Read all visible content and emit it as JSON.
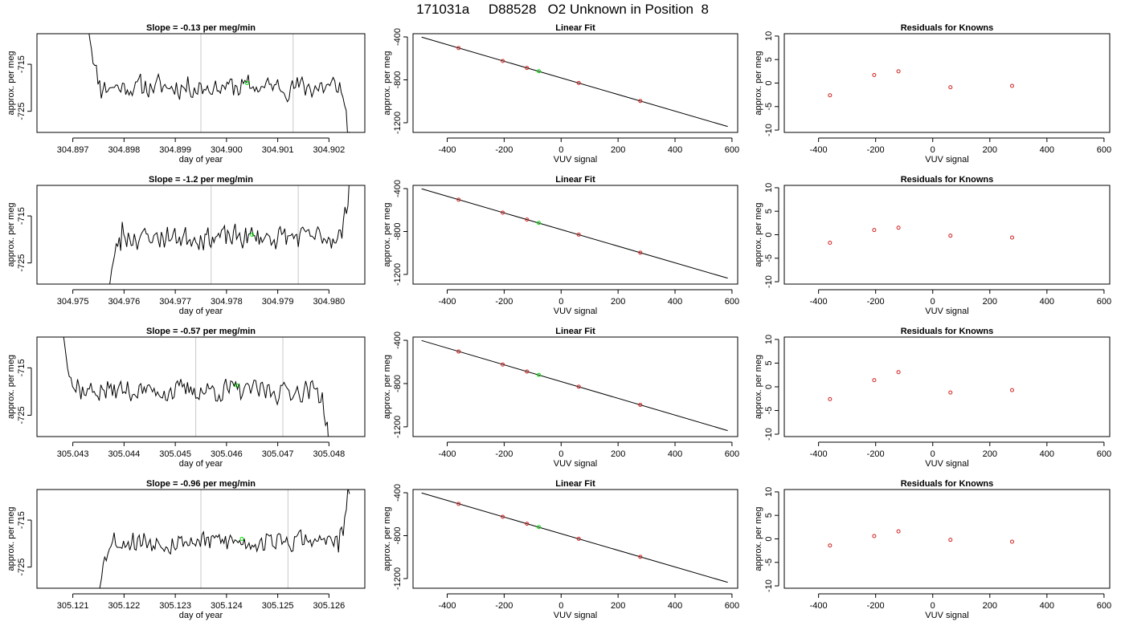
{
  "page_title": "171031a     D88528   O2 Unknown in Position  8",
  "chart_data": [
    {
      "type": "line",
      "panel": "trace",
      "row": 0,
      "title": "Slope =  -0.13  per meg/min",
      "xlabel": "day of year",
      "ylabel": "approx. per meg",
      "xlim": [
        304.8963,
        304.9027
      ],
      "ylim": [
        -729.5,
        -708.5
      ],
      "xticks": [
        "304.897",
        "304.898",
        "304.899",
        "304.900",
        "304.901",
        "304.902"
      ],
      "xtick_values": [
        304.897,
        304.898,
        304.899,
        304.9,
        304.901,
        304.902
      ],
      "yticks": [
        "-715",
        "-725"
      ],
      "ytick_values": [
        -715,
        -725
      ],
      "vlines": [
        304.8995,
        304.9013
      ],
      "green_point": [
        304.9004,
        -719.0
      ],
      "trace_start": 304.8973,
      "trace_end": 304.9024,
      "trace_start_y": -707,
      "trace_end_y": -731,
      "trace_mean": -719.8,
      "seed": 11,
      "tail": "down"
    },
    {
      "type": "scatter",
      "panel": "fit",
      "row": 0,
      "title": "Linear Fit",
      "xlabel": "VUV signal",
      "ylabel": "approx. per meg",
      "xlim": [
        -520,
        620
      ],
      "ylim": [
        -1290,
        -370
      ],
      "xticks": [
        "-400",
        "-200",
        "0",
        "200",
        "400",
        "600"
      ],
      "xtick_values": [
        -400,
        -200,
        0,
        200,
        400,
        600
      ],
      "yticks": [
        "-400",
        "-800",
        "-1200"
      ],
      "ytick_values": [
        -400,
        -800,
        -1200
      ],
      "line": {
        "x": [
          -490,
          585
        ],
        "y": [
          -402,
          -1235
        ]
      },
      "knowns": {
        "x": [
          -360,
          -205,
          -120,
          62,
          278
        ],
        "y": [
          -504,
          -624,
          -689,
          -829,
          -997
        ]
      },
      "unknown": {
        "x": [
          -78
        ],
        "y": [
          -720
        ]
      }
    },
    {
      "type": "scatter",
      "panel": "resid",
      "row": 0,
      "title": "Residuals for Knowns",
      "xlabel": "VUV signal",
      "ylabel": "approx. per meg",
      "xlim": [
        -520,
        620
      ],
      "ylim": [
        -10.5,
        10.5
      ],
      "xticks": [
        "-400",
        "-200",
        "0",
        "200",
        "400",
        "600"
      ],
      "xtick_values": [
        -400,
        -200,
        0,
        200,
        400,
        600
      ],
      "yticks": [
        "-10",
        "-5",
        "0",
        "5",
        "10"
      ],
      "ytick_values": [
        -10,
        -5,
        0,
        5,
        10
      ],
      "x": [
        -360,
        -205,
        -120,
        62,
        278
      ],
      "y": [
        -2.6,
        1.7,
        2.5,
        -0.9,
        -0.6
      ]
    },
    {
      "type": "line",
      "panel": "trace",
      "row": 1,
      "title": "Slope =  -1.2  per meg/min",
      "xlabel": "day of year",
      "ylabel": "approx. per meg",
      "xlim": [
        304.9743,
        304.9807
      ],
      "ylim": [
        -729.5,
        -708.5
      ],
      "xticks": [
        "304.975",
        "304.976",
        "304.977",
        "304.978",
        "304.979",
        "304.980"
      ],
      "xtick_values": [
        304.975,
        304.976,
        304.977,
        304.978,
        304.979,
        304.98
      ],
      "yticks": [
        "-715",
        "-725"
      ],
      "ytick_values": [
        -715,
        -725
      ],
      "vlines": [
        304.9777,
        304.9794
      ],
      "green_point": [
        304.9785,
        -719.0
      ],
      "trace_start": 304.9757,
      "trace_end": 304.9804,
      "trace_start_y": -731,
      "trace_end_y": -707,
      "trace_mean": -719.5,
      "seed": 23,
      "tail": "up"
    },
    {
      "type": "scatter",
      "panel": "fit",
      "row": 1,
      "title": "Linear Fit",
      "xlabel": "VUV signal",
      "ylabel": "approx. per meg",
      "xlim": [
        -520,
        620
      ],
      "ylim": [
        -1290,
        -370
      ],
      "xticks": [
        "-400",
        "-200",
        "0",
        "200",
        "400",
        "600"
      ],
      "xtick_values": [
        -400,
        -200,
        0,
        200,
        400,
        600
      ],
      "yticks": [
        "-400",
        "-800",
        "-1200"
      ],
      "ytick_values": [
        -400,
        -800,
        -1200
      ],
      "line": {
        "x": [
          -490,
          585
        ],
        "y": [
          -402,
          -1235
        ]
      },
      "knowns": {
        "x": [
          -360,
          -205,
          -120,
          62,
          278
        ],
        "y": [
          -504,
          -624,
          -689,
          -829,
          -997
        ]
      },
      "unknown": {
        "x": [
          -78
        ],
        "y": [
          -720
        ]
      }
    },
    {
      "type": "scatter",
      "panel": "resid",
      "row": 1,
      "title": "Residuals for Knowns",
      "xlabel": "VUV signal",
      "ylabel": "approx. per meg",
      "xlim": [
        -520,
        620
      ],
      "ylim": [
        -10.5,
        10.5
      ],
      "xticks": [
        "-400",
        "-200",
        "0",
        "200",
        "400",
        "600"
      ],
      "xtick_values": [
        -400,
        -200,
        0,
        200,
        400,
        600
      ],
      "yticks": [
        "-10",
        "-5",
        "0",
        "5",
        "10"
      ],
      "ytick_values": [
        -10,
        -5,
        0,
        5,
        10
      ],
      "x": [
        -360,
        -205,
        -120,
        62,
        278
      ],
      "y": [
        -1.7,
        1.0,
        1.5,
        -0.2,
        -0.6
      ]
    },
    {
      "type": "line",
      "panel": "trace",
      "row": 2,
      "title": "Slope =  -0.57  per meg/min",
      "xlabel": "day of year",
      "ylabel": "approx. per meg",
      "xlim": [
        305.0423,
        305.0487
      ],
      "ylim": [
        -729.5,
        -708.5
      ],
      "xticks": [
        "305.043",
        "305.044",
        "305.045",
        "305.046",
        "305.047",
        "305.048"
      ],
      "xtick_values": [
        305.043,
        305.044,
        305.045,
        305.046,
        305.047,
        305.048
      ],
      "yticks": [
        "-715",
        "-725"
      ],
      "ytick_values": [
        -715,
        -725
      ],
      "vlines": [
        305.0454,
        305.0471
      ],
      "green_point": [
        305.0462,
        -718.7
      ],
      "trace_start": 305.0428,
      "trace_end": 305.048,
      "trace_start_y": -707,
      "trace_end_y": -731,
      "trace_mean": -719.8,
      "seed": 37,
      "tail": "down"
    },
    {
      "type": "scatter",
      "panel": "fit",
      "row": 2,
      "title": "Linear Fit",
      "xlabel": "VUV signal",
      "ylabel": "approx. per meg",
      "xlim": [
        -520,
        620
      ],
      "ylim": [
        -1290,
        -370
      ],
      "xticks": [
        "-400",
        "-200",
        "0",
        "200",
        "400",
        "600"
      ],
      "xtick_values": [
        -400,
        -200,
        0,
        200,
        400,
        600
      ],
      "yticks": [
        "-400",
        "-800",
        "-1200"
      ],
      "ytick_values": [
        -400,
        -800,
        -1200
      ],
      "line": {
        "x": [
          -490,
          585
        ],
        "y": [
          -402,
          -1235
        ]
      },
      "knowns": {
        "x": [
          -360,
          -205,
          -120,
          62,
          278
        ],
        "y": [
          -504,
          -624,
          -689,
          -829,
          -997
        ]
      },
      "unknown": {
        "x": [
          -78
        ],
        "y": [
          -720
        ]
      }
    },
    {
      "type": "scatter",
      "panel": "resid",
      "row": 2,
      "title": "Residuals for Knowns",
      "xlabel": "VUV signal",
      "ylabel": "approx. per meg",
      "xlim": [
        -520,
        620
      ],
      "ylim": [
        -10.5,
        10.5
      ],
      "xticks": [
        "-400",
        "-200",
        "0",
        "200",
        "400",
        "600"
      ],
      "xtick_values": [
        -400,
        -200,
        0,
        200,
        400,
        600
      ],
      "yticks": [
        "-10",
        "-5",
        "0",
        "5",
        "10"
      ],
      "ytick_values": [
        -10,
        -5,
        0,
        5,
        10
      ],
      "x": [
        -360,
        -205,
        -120,
        62,
        278
      ],
      "y": [
        -2.6,
        1.4,
        3.1,
        -1.2,
        -0.7
      ]
    },
    {
      "type": "line",
      "panel": "trace",
      "row": 3,
      "title": "Slope =  -0.96  per meg/min",
      "xlabel": "day of year",
      "ylabel": "approx. per meg",
      "xlim": [
        305.1203,
        305.1267
      ],
      "ylim": [
        -729.5,
        -708.5
      ],
      "xticks": [
        "305.121",
        "305.122",
        "305.123",
        "305.124",
        "305.125",
        "305.126"
      ],
      "xtick_values": [
        305.121,
        305.122,
        305.123,
        305.124,
        305.125,
        305.126
      ],
      "yticks": [
        "-715",
        "-725"
      ],
      "ytick_values": [
        -715,
        -725
      ],
      "vlines": [
        305.1235,
        305.1252
      ],
      "green_point": [
        305.1243,
        -719.0
      ],
      "trace_start": 305.1215,
      "trace_end": 305.1264,
      "trace_start_y": -731,
      "trace_end_y": -707,
      "trace_mean": -719.5,
      "seed": 53,
      "tail": "up"
    },
    {
      "type": "scatter",
      "panel": "fit",
      "row": 3,
      "title": "Linear Fit",
      "xlabel": "VUV signal",
      "ylabel": "approx. per meg",
      "xlim": [
        -520,
        620
      ],
      "ylim": [
        -1290,
        -370
      ],
      "xticks": [
        "-400",
        "-200",
        "0",
        "200",
        "400",
        "600"
      ],
      "xtick_values": [
        -400,
        -200,
        0,
        200,
        400,
        600
      ],
      "yticks": [
        "-400",
        "-800",
        "-1200"
      ],
      "ytick_values": [
        -400,
        -800,
        -1200
      ],
      "line": {
        "x": [
          -490,
          585
        ],
        "y": [
          -402,
          -1235
        ]
      },
      "knowns": {
        "x": [
          -360,
          -205,
          -120,
          62,
          278
        ],
        "y": [
          -504,
          -624,
          -689,
          -829,
          -997
        ]
      },
      "unknown": {
        "x": [
          -78
        ],
        "y": [
          -720
        ]
      }
    },
    {
      "type": "scatter",
      "panel": "resid",
      "row": 3,
      "title": "Residuals for Knowns",
      "xlabel": "VUV signal",
      "ylabel": "approx. per meg",
      "xlim": [
        -520,
        620
      ],
      "ylim": [
        -10.5,
        10.5
      ],
      "xticks": [
        "-400",
        "-200",
        "0",
        "200",
        "400",
        "600"
      ],
      "xtick_values": [
        -400,
        -200,
        0,
        200,
        400,
        600
      ],
      "yticks": [
        "-10",
        "-5",
        "0",
        "5",
        "10"
      ],
      "ytick_values": [
        -10,
        -5,
        0,
        5,
        10
      ],
      "x": [
        -360,
        -205,
        -120,
        62,
        278
      ],
      "y": [
        -1.4,
        0.6,
        1.6,
        -0.2,
        -0.6
      ]
    }
  ],
  "colors": {
    "trace": "#000000",
    "vline": "#c8c8c8",
    "known_point": "#d22020",
    "unknown_point": "#00dd00",
    "axis": "#000000"
  }
}
